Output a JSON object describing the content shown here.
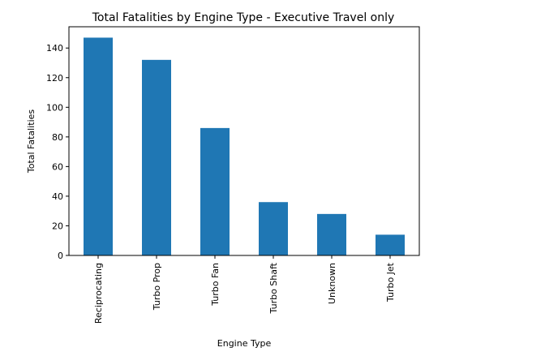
{
  "chart_data": {
    "type": "bar",
    "title": "Total Fatalities by Engine Type - Executive Travel only",
    "xlabel": "Engine Type",
    "ylabel": "Total Fatalities",
    "categories": [
      "Reciprocating",
      "Turbo Prop",
      "Turbo Fan",
      "Turbo Shaft",
      "Unknown",
      "Turbo Jet"
    ],
    "values": [
      147,
      132,
      86,
      36,
      28,
      14
    ],
    "ylim": [
      0,
      154.35
    ],
    "yticks": [
      0,
      20,
      40,
      60,
      80,
      100,
      120,
      140
    ],
    "bar_color": "#1f77b4",
    "grid": false,
    "legend": "none"
  }
}
